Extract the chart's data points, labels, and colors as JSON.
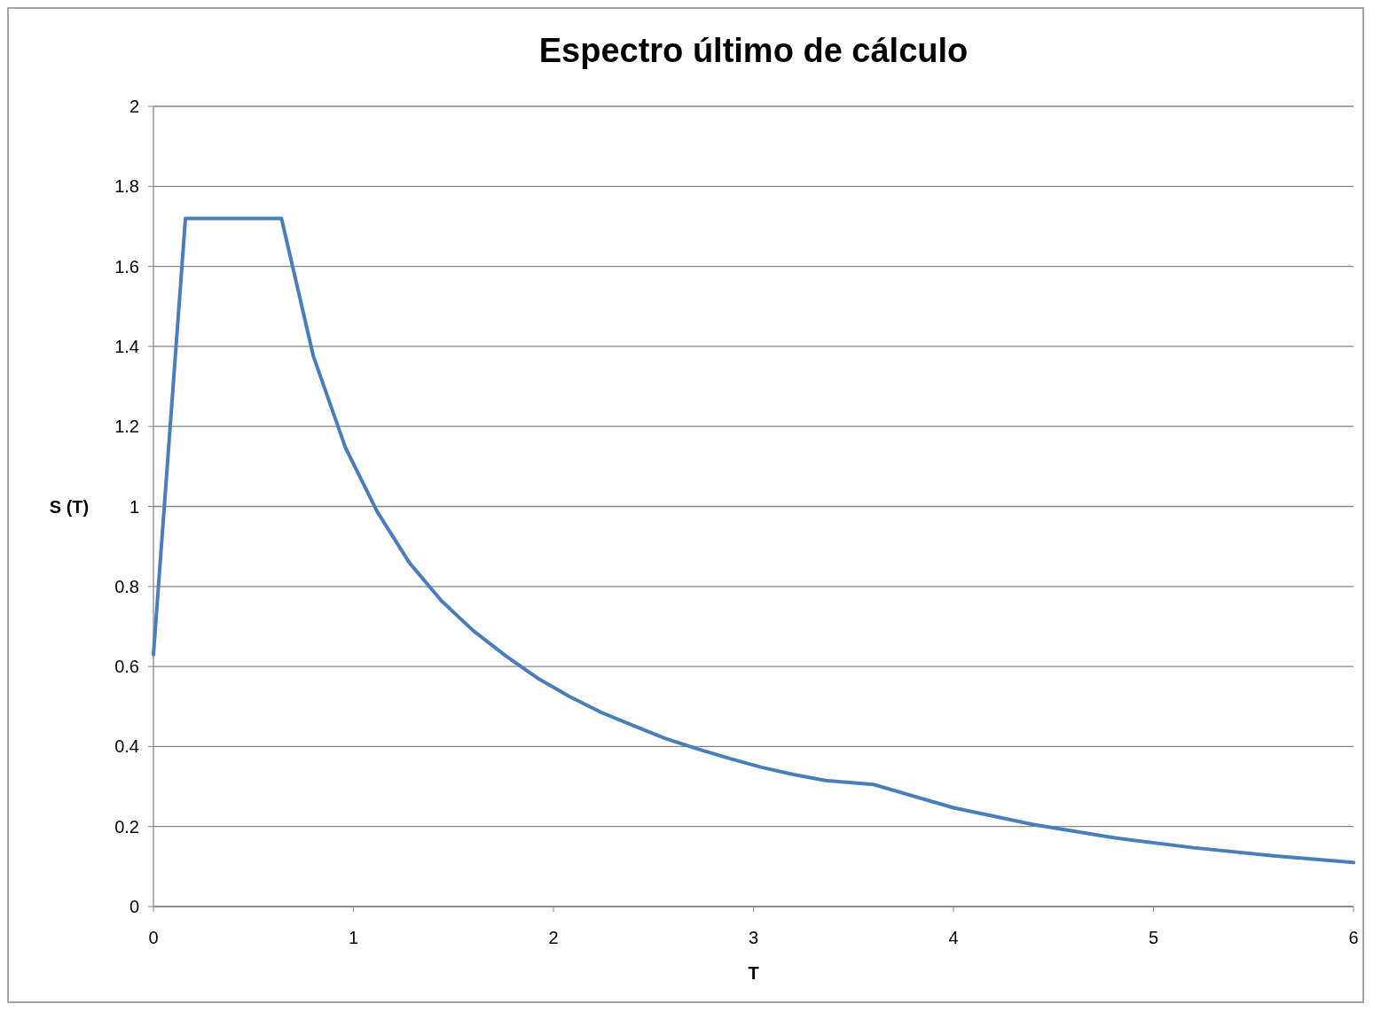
{
  "chart_data": {
    "type": "line",
    "title": "Espectro último de cálculo",
    "xlabel": "T",
    "ylabel": "S (T)",
    "x": [
      0,
      0.16,
      0.64,
      0.8,
      0.96,
      1.12,
      1.28,
      1.44,
      1.6,
      1.76,
      1.92,
      2.08,
      2.24,
      2.4,
      2.56,
      2.72,
      2.88,
      3.04,
      3.2,
      3.36,
      3.6,
      4,
      4.4,
      4.8,
      5.2,
      5.6,
      6
    ],
    "series": [
      {
        "color": "#4a7ebb",
        "values": [
          0.63,
          1.72,
          1.72,
          1.375,
          1.147,
          0.986,
          0.859,
          0.764,
          0.689,
          0.627,
          0.571,
          0.525,
          0.485,
          0.452,
          0.42,
          0.394,
          0.37,
          0.348,
          0.33,
          0.315,
          0.305,
          0.247,
          0.205,
          0.172,
          0.147,
          0.127,
          0.11
        ]
      }
    ],
    "xlim": [
      0,
      6
    ],
    "xticks": [
      0,
      1,
      2,
      3,
      4,
      5,
      6
    ],
    "ylim": [
      0,
      2
    ],
    "yticks": [
      0,
      0.2,
      0.4,
      0.6,
      0.8,
      1,
      1.2,
      1.4,
      1.6,
      1.8,
      2
    ],
    "grid": "y",
    "marker": "none",
    "line_style": "solid"
  }
}
